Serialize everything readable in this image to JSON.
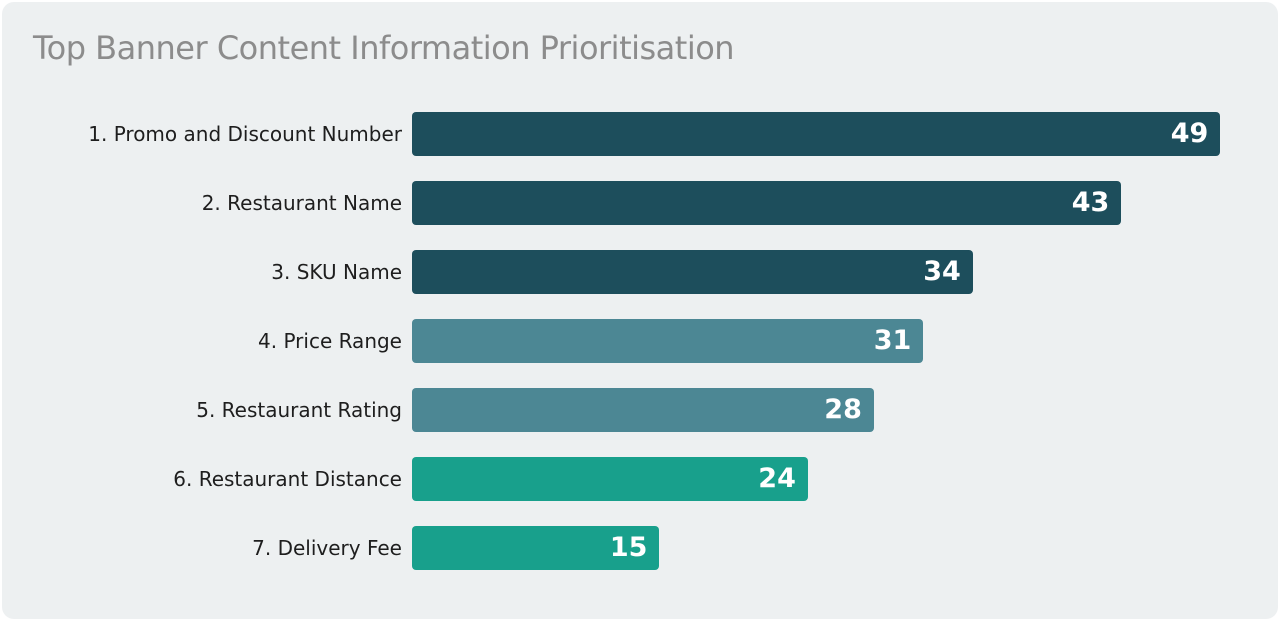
{
  "page": {
    "background_color": "#ffffff",
    "panel_color": "#edf0f1",
    "title_color": "#8c8c8c",
    "label_color": "#1e1e1e",
    "value_label_color": "#ffffff"
  },
  "chart_data": {
    "type": "bar",
    "orientation": "horizontal",
    "title": "Top Banner Content Information Prioritisation",
    "categories": [
      "1. Promo and Discount Number",
      "2. Restaurant Name",
      "3. SKU Name",
      "4. Price Range",
      "5. Restaurant Rating",
      "6. Restaurant Distance",
      "7. Delivery Fee"
    ],
    "values": [
      49,
      43,
      34,
      31,
      28,
      24,
      15
    ],
    "bar_colors": [
      "#1d4e5c",
      "#1d4e5c",
      "#1d4e5c",
      "#4c8794",
      "#4c8794",
      "#18a08c",
      "#18a08c"
    ],
    "color_groups": {
      "dark_teal": "#1d4e5c",
      "slate_teal": "#4c8794",
      "jade_green": "#18a08c"
    },
    "value_labels_inside_bars": true,
    "xlabel": "",
    "ylabel": "",
    "xlim": [
      0,
      52.5
    ],
    "grid": false,
    "legend": false
  }
}
